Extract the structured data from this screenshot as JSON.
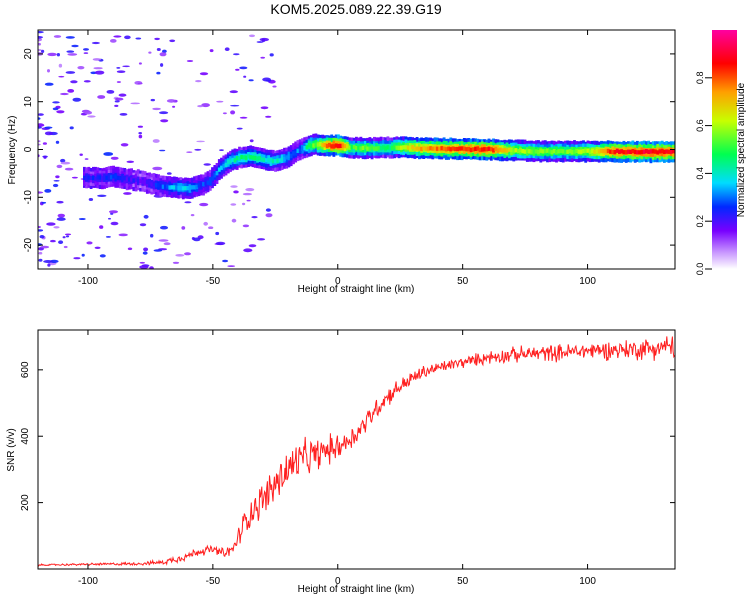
{
  "title": "KOM5.2025.089.22.39.G19",
  "chart_data": [
    {
      "type": "heatmap",
      "title": "KOM5.2025.089.22.39.G19",
      "xlabel": "Height of straight line (km)",
      "ylabel": "Frequency (Hz)",
      "xlim": [
        -120,
        135
      ],
      "ylim": [
        -25,
        25
      ],
      "x_ticks": [
        -100,
        -50,
        0,
        50,
        100
      ],
      "y_ticks": [
        -20,
        -10,
        0,
        10,
        20
      ],
      "colorbar": {
        "label": "Normalized spectral amplitude",
        "range": [
          0,
          1
        ],
        "ticks": [
          0.0,
          0.2,
          0.4,
          0.6,
          0.8
        ],
        "tick_labels": [
          "0.0",
          "0.2",
          "0.4",
          "0.6",
          "0.8"
        ],
        "colormap": "rainbow (white-violet-blue-cyan-green-yellow-red-magenta)"
      },
      "ridge": {
        "description": "Doppler frequency ridge vs height",
        "x": [
          -102,
          -95,
          -90,
          -85,
          -80,
          -75,
          -70,
          -65,
          -60,
          -55,
          -52,
          -50,
          -47,
          -44,
          -40,
          -35,
          -30,
          -27,
          -24,
          -21,
          -18,
          -15,
          -12,
          -9,
          -6,
          -3,
          0,
          5,
          10,
          15,
          20,
          25,
          30,
          40,
          50,
          60,
          70,
          80,
          90,
          100,
          110,
          120,
          130,
          135
        ],
        "freq": [
          -6.0,
          -6.0,
          -5.6,
          -6.2,
          -6.5,
          -7.2,
          -7.8,
          -8.0,
          -8.2,
          -7.5,
          -6.8,
          -5.5,
          -3.8,
          -2.5,
          -1.8,
          -1.5,
          -2.0,
          -2.4,
          -2.2,
          -1.8,
          -0.8,
          0.0,
          0.8,
          1.0,
          0.9,
          0.8,
          0.8,
          0.4,
          0.3,
          0.3,
          0.4,
          0.5,
          0.3,
          0.2,
          0.1,
          0.0,
          -0.2,
          -0.4,
          -0.4,
          -0.4,
          -0.4,
          -0.5,
          -0.5,
          -0.5
        ],
        "amplitude": [
          0.22,
          0.22,
          0.25,
          0.22,
          0.2,
          0.22,
          0.3,
          0.35,
          0.35,
          0.25,
          0.3,
          0.3,
          0.35,
          0.38,
          0.45,
          0.45,
          0.4,
          0.4,
          0.4,
          0.35,
          0.3,
          0.3,
          0.5,
          0.55,
          0.7,
          0.85,
          0.9,
          0.5,
          0.55,
          0.5,
          0.45,
          0.6,
          0.7,
          0.78,
          0.82,
          0.85,
          0.6,
          0.55,
          0.55,
          0.6,
          0.85,
          0.88,
          0.88,
          0.86
        ]
      }
    },
    {
      "type": "line",
      "title": "",
      "xlabel": "Height of straight line (km)",
      "ylabel": "SNR (v/v)",
      "xlim": [
        -120,
        135
      ],
      "ylim": [
        0,
        720
      ],
      "x_ticks": [
        -100,
        -50,
        0,
        50,
        100
      ],
      "y_ticks": [
        200,
        400,
        600
      ],
      "series": [
        {
          "name": "SNR",
          "color": "#ff2020",
          "x": [
            -120,
            -100,
            -80,
            -70,
            -65,
            -60,
            -55,
            -50,
            -45,
            -42,
            -40,
            -38,
            -35,
            -30,
            -25,
            -20,
            -15,
            -10,
            -5,
            0,
            5,
            10,
            15,
            20,
            25,
            30,
            35,
            40,
            45,
            50,
            55,
            60,
            70,
            80,
            90,
            100,
            110,
            120,
            130,
            135
          ],
          "y": [
            12,
            14,
            16,
            20,
            30,
            40,
            55,
            58,
            45,
            60,
            90,
            130,
            170,
            210,
            255,
            300,
            330,
            340,
            355,
            370,
            390,
            430,
            480,
            520,
            550,
            575,
            595,
            605,
            615,
            622,
            630,
            638,
            645,
            650,
            652,
            658,
            660,
            662,
            668,
            672
          ],
          "noise": [
            2,
            3,
            4,
            6,
            10,
            12,
            12,
            12,
            14,
            18,
            25,
            35,
            40,
            45,
            55,
            60,
            50,
            45,
            40,
            35,
            32,
            30,
            28,
            25,
            22,
            20,
            18,
            16,
            15,
            15,
            16,
            18,
            20,
            22,
            22,
            24,
            25,
            28,
            30,
            32
          ]
        }
      ]
    }
  ]
}
